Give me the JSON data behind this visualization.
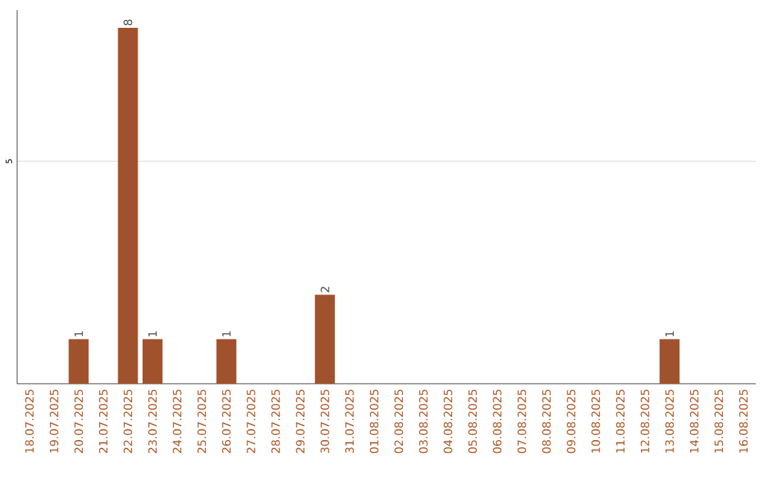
{
  "chart_data": {
    "type": "bar",
    "categories": [
      "18.07.2025",
      "19.07.2025",
      "20.07.2025",
      "21.07.2025",
      "22.07.2025",
      "23.07.2025",
      "24.07.2025",
      "25.07.2025",
      "26.07.2025",
      "27.07.2025",
      "28.07.2025",
      "29.07.2025",
      "30.07.2025",
      "31.07.2025",
      "01.08.2025",
      "02.08.2025",
      "03.08.2025",
      "04.08.2025",
      "05.08.2025",
      "06.08.2025",
      "07.08.2025",
      "08.08.2025",
      "09.08.2025",
      "10.08.2025",
      "11.08.2025",
      "12.08.2025",
      "13.08.2025",
      "14.08.2025",
      "15.08.2025",
      "16.08.2025"
    ],
    "values": [
      0,
      0,
      1,
      0,
      8,
      1,
      0,
      0,
      1,
      0,
      0,
      0,
      2,
      0,
      0,
      0,
      0,
      0,
      0,
      0,
      0,
      0,
      0,
      0,
      0,
      0,
      1,
      0,
      0,
      0
    ],
    "value_labels": [
      null,
      null,
      "1",
      null,
      "8",
      "1",
      null,
      null,
      "1",
      null,
      null,
      null,
      "2",
      null,
      null,
      null,
      null,
      null,
      null,
      null,
      null,
      null,
      null,
      null,
      null,
      null,
      "1",
      null,
      null,
      null
    ],
    "color": "#a0522d",
    "ylim": [
      0,
      8.4
    ],
    "yticks": [
      5
    ],
    "grid": "y"
  }
}
